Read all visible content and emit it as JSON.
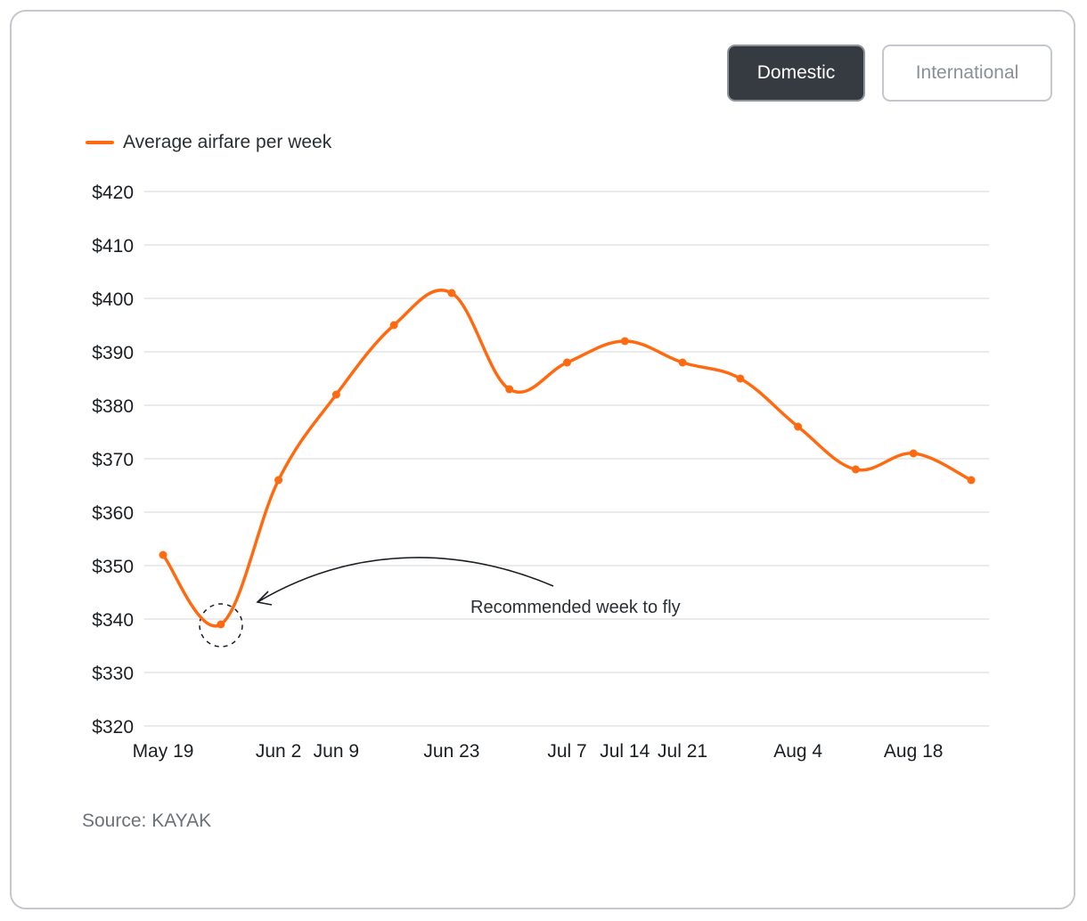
{
  "controls": {
    "domestic_label": "Domestic",
    "international_label": "International",
    "selected": "Domestic"
  },
  "legend": {
    "label": "Average airfare per week"
  },
  "source": "Source: KAYAK",
  "annotation": {
    "text": "Recommended week to fly",
    "target_x": "May 26"
  },
  "colors": {
    "line": "#ff6a10",
    "grid": "#dcdfe2",
    "selected_button": "#353b41"
  },
  "chart_data": {
    "type": "line",
    "title": "",
    "xlabel": "",
    "ylabel": "",
    "ylim": [
      320,
      420
    ],
    "y_ticks": [
      420,
      410,
      400,
      390,
      380,
      370,
      360,
      350,
      340,
      330,
      320
    ],
    "y_tick_labels": [
      "$420",
      "$410",
      "$400",
      "$390",
      "$380",
      "$370",
      "$360",
      "$350",
      "$340",
      "$330",
      "$320"
    ],
    "x_tick_labels": [
      "May 19",
      "Jun 2",
      "Jun 9",
      "Jun 23",
      "Jul 7",
      "Jul 14",
      "Jul 21",
      "Aug 4",
      "Aug 18"
    ],
    "grid": true,
    "legend_position": "top-left",
    "series": [
      {
        "name": "Average airfare per week",
        "x": [
          "May 19",
          "May 26",
          "Jun 2",
          "Jun 9",
          "Jun 16",
          "Jun 23",
          "Jun 30",
          "Jul 7",
          "Jul 14",
          "Jul 21",
          "Jul 28",
          "Aug 4",
          "Aug 11",
          "Aug 18",
          "Aug 25"
        ],
        "values": [
          352,
          339,
          366,
          382,
          395,
          401,
          383,
          388,
          392,
          388,
          385,
          376,
          368,
          371,
          366
        ]
      }
    ]
  }
}
